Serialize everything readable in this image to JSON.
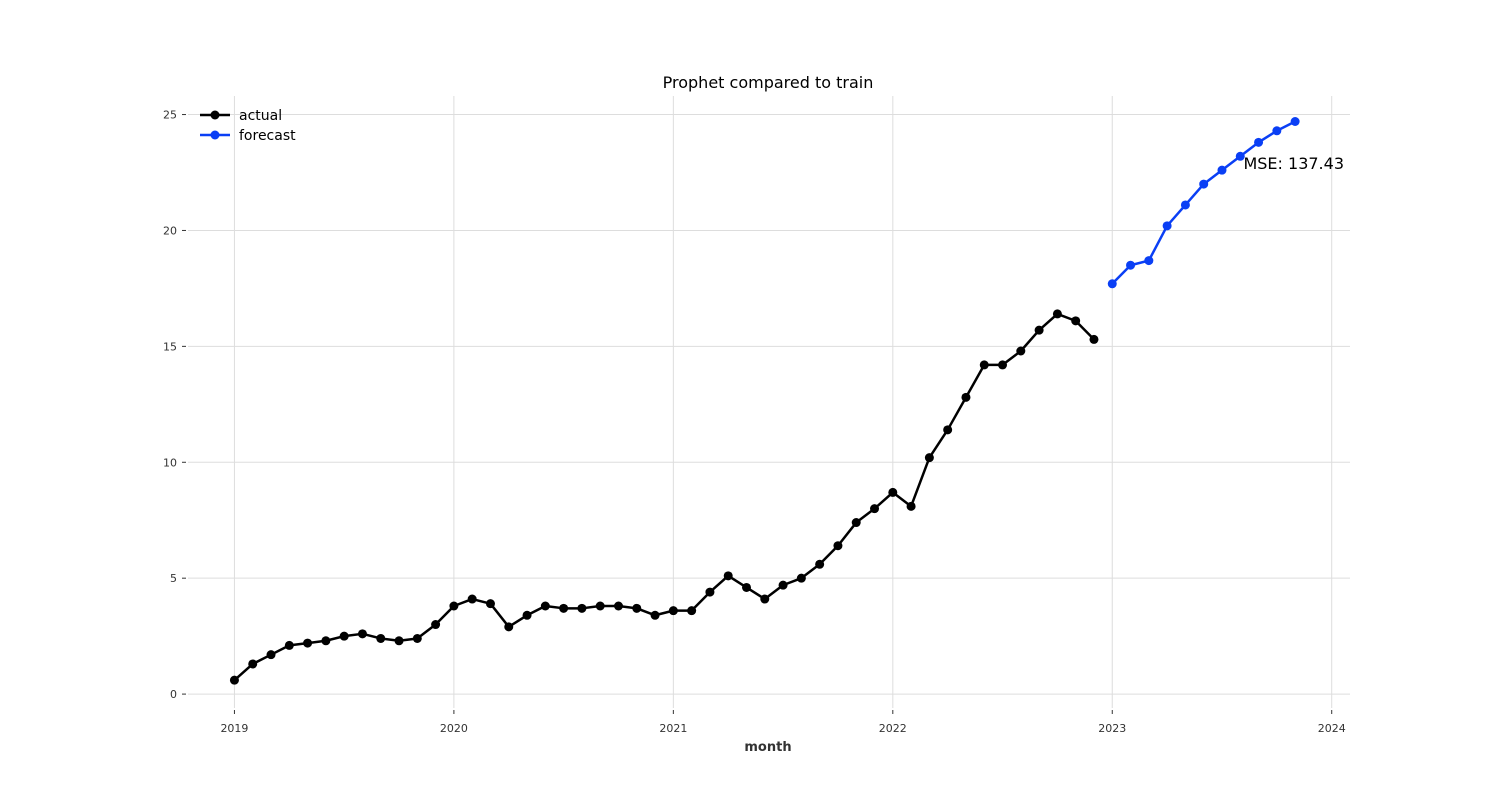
{
  "chart_data": {
    "type": "line",
    "title": "Prophet compared to train",
    "xlabel": "month",
    "ylabel": "",
    "xlim": [
      "2018-10-15",
      "2024-02-01"
    ],
    "ylim": [
      -0.6,
      25.8
    ],
    "x_ticks": [
      "2019",
      "2020",
      "2021",
      "2022",
      "2023",
      "2024"
    ],
    "y_ticks": [
      0,
      5,
      10,
      15,
      20,
      25
    ],
    "grid": true,
    "legend_position": "top-left",
    "annotation": "MSE: 137.43",
    "series": [
      {
        "name": "actual",
        "color": "#000000",
        "x": [
          "2019-01",
          "2019-02",
          "2019-03",
          "2019-04",
          "2019-05",
          "2019-06",
          "2019-07",
          "2019-08",
          "2019-09",
          "2019-10",
          "2019-11",
          "2019-12",
          "2020-01",
          "2020-02",
          "2020-03",
          "2020-04",
          "2020-05",
          "2020-06",
          "2020-07",
          "2020-08",
          "2020-09",
          "2020-10",
          "2020-11",
          "2020-12",
          "2021-01",
          "2021-02",
          "2021-03",
          "2021-04",
          "2021-05",
          "2021-06",
          "2021-07",
          "2021-08",
          "2021-09",
          "2021-10",
          "2021-11",
          "2021-12",
          "2022-01",
          "2022-02",
          "2022-03",
          "2022-04",
          "2022-05",
          "2022-06",
          "2022-07",
          "2022-08",
          "2022-09",
          "2022-10",
          "2022-11",
          "2022-12"
        ],
        "y": [
          0.6,
          1.3,
          1.7,
          2.1,
          2.2,
          2.3,
          2.5,
          2.6,
          2.4,
          2.3,
          2.4,
          3.0,
          3.8,
          4.1,
          3.9,
          2.9,
          3.4,
          3.8,
          3.7,
          3.7,
          3.8,
          3.8,
          3.7,
          3.4,
          3.6,
          3.6,
          4.4,
          5.1,
          4.6,
          4.1,
          4.7,
          5.0,
          5.6,
          6.4,
          7.4,
          8.0,
          8.7,
          8.1,
          10.2,
          11.4,
          12.8,
          14.2,
          14.2,
          14.8,
          15.7,
          16.4,
          16.1,
          15.3
        ]
      },
      {
        "name": "forecast",
        "color": "#0a3ff5",
        "x": [
          "2023-01",
          "2023-02",
          "2023-03",
          "2023-04",
          "2023-05",
          "2023-06",
          "2023-07",
          "2023-08",
          "2023-09",
          "2023-10",
          "2023-11"
        ],
        "y": [
          17.7,
          18.5,
          18.7,
          20.2,
          21.1,
          22.0,
          22.6,
          23.2,
          23.8,
          24.3,
          24.7
        ]
      }
    ]
  }
}
